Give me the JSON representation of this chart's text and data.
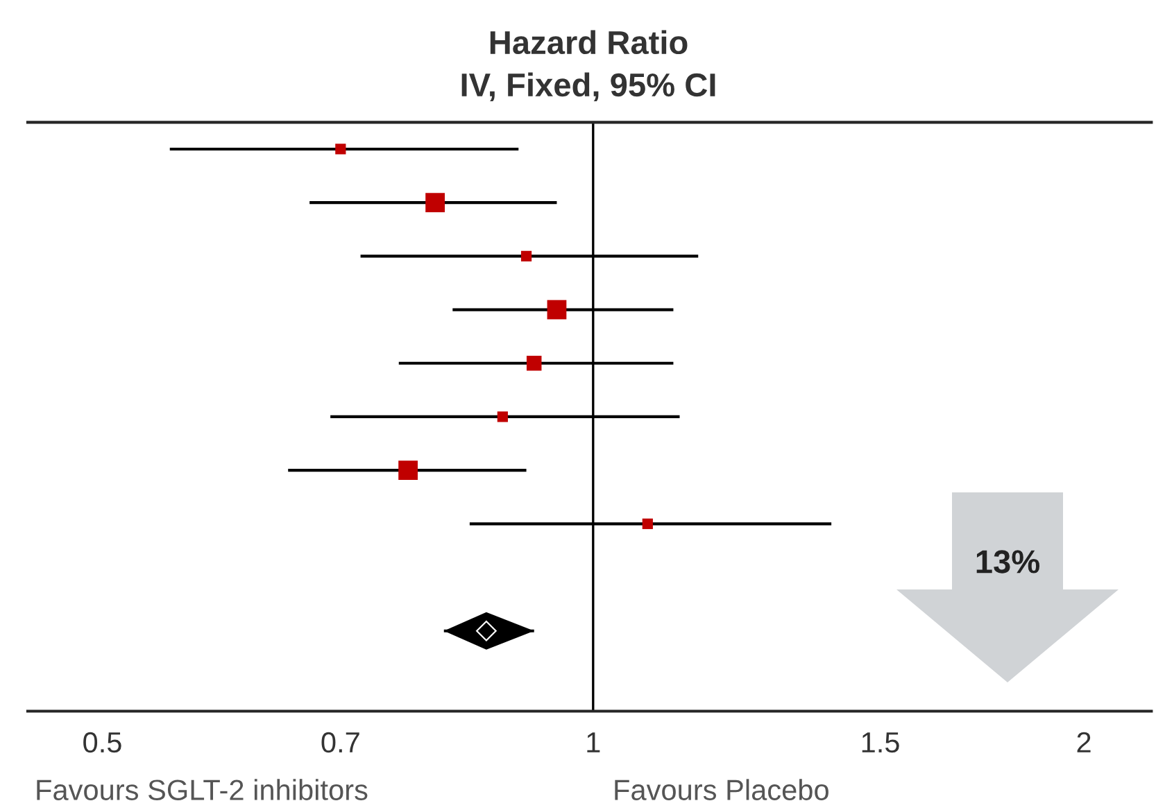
{
  "chart_data": {
    "type": "scatter",
    "orientation": "horizontal",
    "title": "Hazard Ratio\nIV, Fixed, 95% CI",
    "categories": [
      null,
      null,
      null,
      null,
      null,
      null,
      null,
      null,
      null,
      null,
      null
    ],
    "series": [
      {
        "marker": "square",
        "color": "#c00000",
        "values": [
          0.7,
          0.8,
          0.91,
          0.95,
          0.92,
          0.88,
          0.77,
          1.08,
          null,
          null,
          null
        ],
        "errors": [
          [
            0.55,
            0.9
          ],
          [
            0.67,
            0.95
          ],
          [
            0.72,
            1.16
          ],
          [
            0.82,
            1.12
          ],
          [
            0.76,
            1.12
          ],
          [
            0.69,
            1.13
          ],
          [
            0.65,
            0.91
          ],
          [
            0.84,
            1.4
          ],
          null,
          null,
          null
        ],
        "sizes": [
          0.3,
          1,
          0.3,
          1,
          0.6,
          0.3,
          1,
          0.3,
          null,
          null,
          null
        ]
      },
      {
        "marker": "diamond",
        "color": "#000000",
        "values": [
          null,
          null,
          null,
          null,
          null,
          null,
          null,
          null,
          null,
          0.86,
          null
        ],
        "errors": [
          null,
          null,
          null,
          null,
          null,
          null,
          null,
          null,
          null,
          [
            0.81,
            0.92
          ],
          null
        ]
      }
    ],
    "log": "x",
    "xlim": [
      0.45,
      2.2
    ],
    "xticks": [
      0.5,
      0.7,
      1,
      1.5,
      2
    ],
    "ref_lines": [
      {
        "axis": "x",
        "value": 1,
        "color": "#000000"
      }
    ],
    "annotations": [
      "Favours SGLT-2 inhibitors",
      "Favours Placebo",
      "13%"
    ],
    "grid": false,
    "legend": false
  }
}
